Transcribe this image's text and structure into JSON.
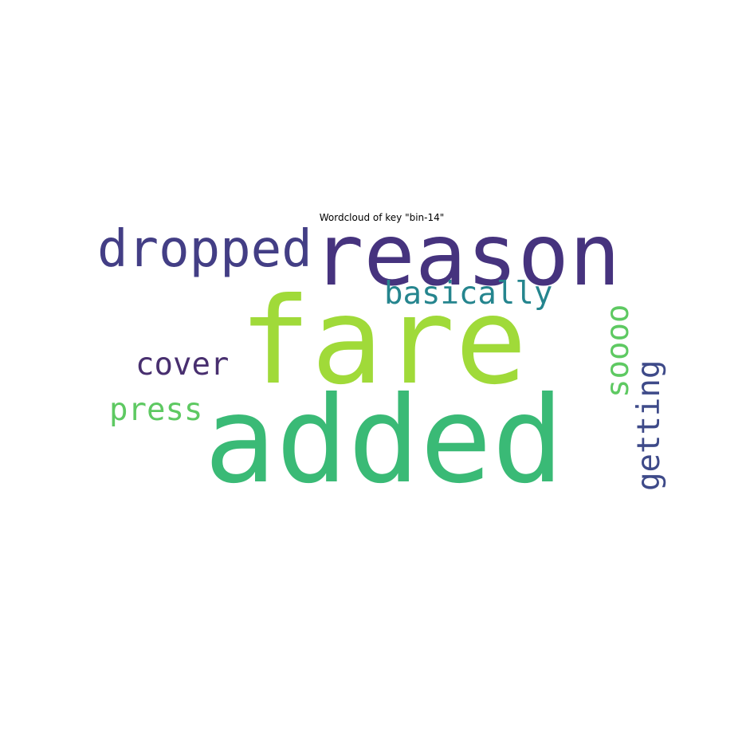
{
  "title": "Wordcloud of key \"bin-14\"",
  "words": [
    {
      "text": "reason",
      "color": "#46337e",
      "orientation": "horizontal"
    },
    {
      "text": "fare",
      "color": "#a0da39",
      "orientation": "horizontal"
    },
    {
      "text": "added",
      "color": "#3aba76",
      "orientation": "horizontal"
    },
    {
      "text": "dropped",
      "color": "#433e85",
      "orientation": "horizontal"
    },
    {
      "text": "basically",
      "color": "#25858e",
      "orientation": "horizontal"
    },
    {
      "text": "cover",
      "color": "#482f6f",
      "orientation": "horizontal"
    },
    {
      "text": "press",
      "color": "#5ec962",
      "orientation": "horizontal"
    },
    {
      "text": "soooo",
      "color": "#5ec962",
      "orientation": "vertical"
    },
    {
      "text": "getting",
      "color": "#3e4a89",
      "orientation": "vertical"
    }
  ]
}
